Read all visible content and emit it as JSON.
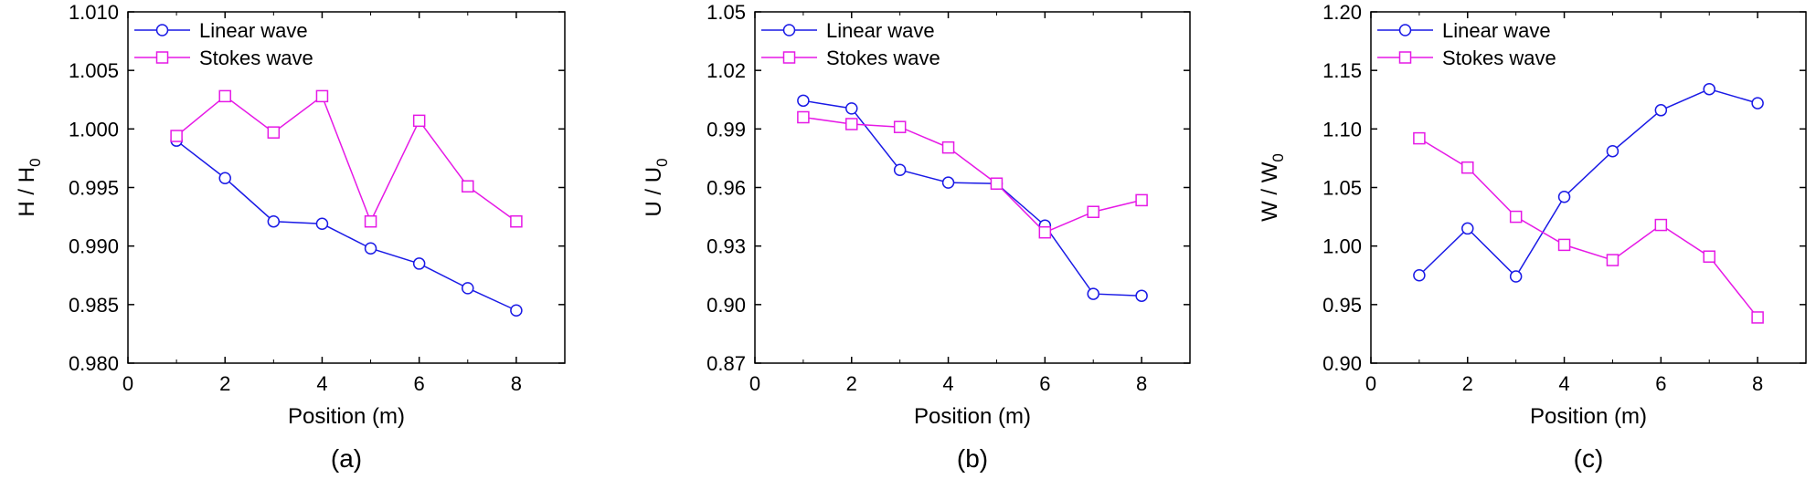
{
  "figure": {
    "colors": {
      "linear": "#1a1ae6",
      "stokes": "#e619e6",
      "axis": "#000000"
    }
  },
  "chart_data": [
    {
      "type": "line",
      "panel_label": "(a)",
      "xlabel": "Position (m)",
      "ylabel_main": "H / H",
      "ylabel_sub": "0",
      "xlim": [
        0,
        9
      ],
      "ylim": [
        0.98,
        1.01
      ],
      "xticks": [
        "0",
        "2",
        "4",
        "6",
        "8"
      ],
      "yticks": [
        "0.980",
        "0.985",
        "0.990",
        "0.995",
        "1.000",
        "1.005",
        "1.010"
      ],
      "legend": "top-left",
      "x": [
        1,
        2,
        3,
        4,
        5,
        6,
        7,
        8
      ],
      "series": [
        {
          "name": "Linear wave",
          "marker": "circle",
          "values": [
            0.999,
            0.9958,
            0.9921,
            0.9919,
            0.9898,
            0.9885,
            0.9864,
            0.9845
          ]
        },
        {
          "name": "Stokes wave",
          "marker": "square",
          "values": [
            0.9994,
            1.0028,
            0.9997,
            1.0028,
            0.9921,
            1.0007,
            0.9951,
            0.9921
          ]
        }
      ]
    },
    {
      "type": "line",
      "panel_label": "(b)",
      "xlabel": "Position (m)",
      "ylabel_main": "U / U",
      "ylabel_sub": "0",
      "xlim": [
        0,
        9
      ],
      "ylim": [
        0.87,
        1.05
      ],
      "xticks": [
        "0",
        "2",
        "4",
        "6",
        "8"
      ],
      "yticks": [
        "0.87",
        "0.90",
        "0.93",
        "0.96",
        "0.99",
        "1.02",
        "1.05"
      ],
      "legend": "top-left",
      "x": [
        1,
        2,
        3,
        4,
        5,
        6,
        7,
        8
      ],
      "series": [
        {
          "name": "Linear wave",
          "marker": "circle",
          "values": [
            1.0045,
            1.0005,
            0.969,
            0.9625,
            0.962,
            0.9405,
            0.9055,
            0.9045
          ]
        },
        {
          "name": "Stokes wave",
          "marker": "square",
          "values": [
            0.996,
            0.9925,
            0.991,
            0.9805,
            0.962,
            0.937,
            0.9475,
            0.9535
          ]
        }
      ]
    },
    {
      "type": "line",
      "panel_label": "(c)",
      "xlabel": "Position (m)",
      "ylabel_main": "W / W",
      "ylabel_sub": "0",
      "xlim": [
        0,
        9
      ],
      "ylim": [
        0.9,
        1.2
      ],
      "xticks": [
        "0",
        "2",
        "4",
        "6",
        "8"
      ],
      "yticks": [
        "0.90",
        "0.95",
        "1.00",
        "1.05",
        "1.10",
        "1.15",
        "1.20"
      ],
      "legend": "top-left",
      "x": [
        1,
        2,
        3,
        4,
        5,
        6,
        7,
        8
      ],
      "series": [
        {
          "name": "Linear wave",
          "marker": "circle",
          "values": [
            0.975,
            1.015,
            0.974,
            1.042,
            1.081,
            1.116,
            1.134,
            1.122
          ]
        },
        {
          "name": "Stokes wave",
          "marker": "square",
          "values": [
            1.092,
            1.067,
            1.025,
            1.001,
            0.988,
            1.018,
            0.991,
            0.939
          ]
        }
      ]
    }
  ]
}
